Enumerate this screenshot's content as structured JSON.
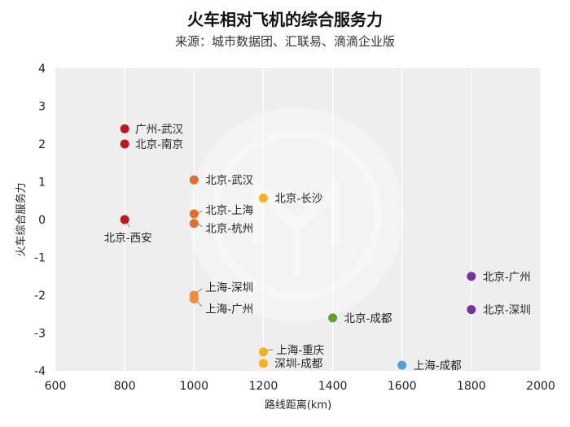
{
  "chart_data": {
    "type": "scatter",
    "title": "火车相对飞机的综合服务力",
    "subtitle": "来源：城市数据团、汇联易、滴滴企业版",
    "xlabel": "路线距离(km)",
    "ylabel": "火车综合服务力",
    "xlim": [
      600,
      2000
    ],
    "ylim": [
      -4,
      4
    ],
    "xticks": [
      "600",
      "800",
      "1000",
      "1200",
      "1400",
      "1600",
      "1800",
      "2000"
    ],
    "yticks": [
      "4",
      "3",
      "2",
      "1",
      "0",
      "-1",
      "-2",
      "-3",
      "-4"
    ],
    "grid": "vertical",
    "points": [
      {
        "label": "广州-武汉",
        "x": 800,
        "y": 2.4,
        "color": "#c0161d"
      },
      {
        "label": "北京-南京",
        "x": 800,
        "y": 2.0,
        "color": "#c0161d"
      },
      {
        "label": "北京-西安",
        "x": 800,
        "y": 0.0,
        "color": "#c0161d"
      },
      {
        "label": "北京-武汉",
        "x": 1000,
        "y": 1.05,
        "color": "#e0702b"
      },
      {
        "label": "北京-上海",
        "x": 1000,
        "y": 0.15,
        "color": "#e0702b"
      },
      {
        "label": "北京-杭州",
        "x": 1000,
        "y": -0.1,
        "color": "#e0702b"
      },
      {
        "label": "上海-深圳",
        "x": 1000,
        "y": -2.0,
        "color": "#f08d3c"
      },
      {
        "label": "上海-广州",
        "x": 1000,
        "y": -2.1,
        "color": "#f08d3c"
      },
      {
        "label": "北京-长沙",
        "x": 1200,
        "y": 0.57,
        "color": "#f7b21b"
      },
      {
        "label": "上海-重庆",
        "x": 1200,
        "y": -3.5,
        "color": "#f7b21b"
      },
      {
        "label": "深圳-成都",
        "x": 1200,
        "y": -3.8,
        "color": "#f7b21b"
      },
      {
        "label": "北京-成都",
        "x": 1400,
        "y": -2.6,
        "color": "#5c9f33"
      },
      {
        "label": "上海-成都",
        "x": 1600,
        "y": -3.85,
        "color": "#5b9bd5"
      },
      {
        "label": "北京-广州",
        "x": 1800,
        "y": -1.5,
        "color": "#7533a0"
      },
      {
        "label": "北京-深圳",
        "x": 1800,
        "y": -2.38,
        "color": "#7533a0"
      }
    ]
  }
}
